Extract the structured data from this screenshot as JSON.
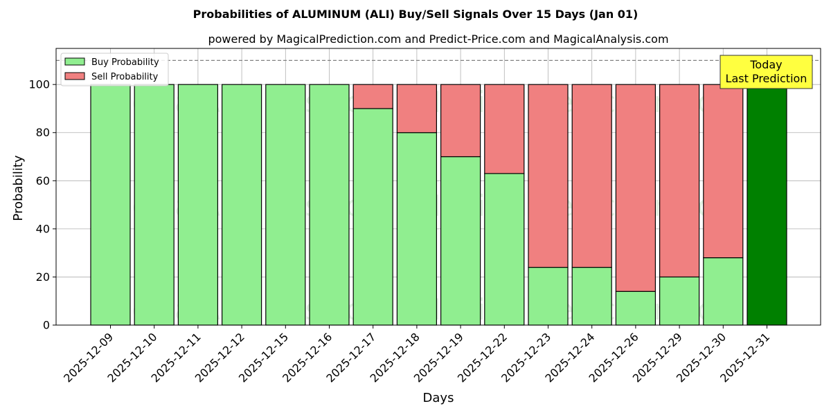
{
  "chart_data": {
    "type": "bar",
    "stacked": true,
    "title": "Probabilities of ALUMINUM (ALI) Buy/Sell Signals Over 15 Days (Jan 01)",
    "subtitle": "powered by MagicalPrediction.com and Predict-Price.com and MagicalAnalysis.com",
    "xlabel": "Days",
    "ylabel": "Probability",
    "ylim": [
      0,
      115
    ],
    "yticks": [
      0,
      20,
      40,
      60,
      80,
      100
    ],
    "grid": true,
    "legend_position": "top-left",
    "reference_line": 110,
    "categories": [
      "2025-12-09",
      "2025-12-10",
      "2025-12-11",
      "2025-12-12",
      "2025-12-15",
      "2025-12-16",
      "2025-12-17",
      "2025-12-18",
      "2025-12-19",
      "2025-12-22",
      "2025-12-23",
      "2025-12-24",
      "2025-12-26",
      "2025-12-29",
      "2025-12-30",
      "2025-12-31"
    ],
    "series": [
      {
        "name": "Buy Probability",
        "color": "#90ee90",
        "values": [
          100,
          100,
          100,
          100,
          100,
          100,
          90,
          80,
          70,
          63,
          24,
          24,
          14,
          20,
          28,
          100
        ]
      },
      {
        "name": "Sell Probability",
        "color": "#f08080",
        "values": [
          0,
          0,
          0,
          0,
          0,
          0,
          10,
          20,
          30,
          37,
          76,
          76,
          86,
          80,
          72,
          0
        ]
      }
    ],
    "highlight": {
      "index": 15,
      "color": "#008000"
    },
    "annotation": {
      "lines": [
        "Today",
        "Last Prediction"
      ],
      "background": "#ffff40"
    },
    "watermarks": [
      "MagicalAnalysis.com",
      "MagicalPrediction.com"
    ]
  }
}
